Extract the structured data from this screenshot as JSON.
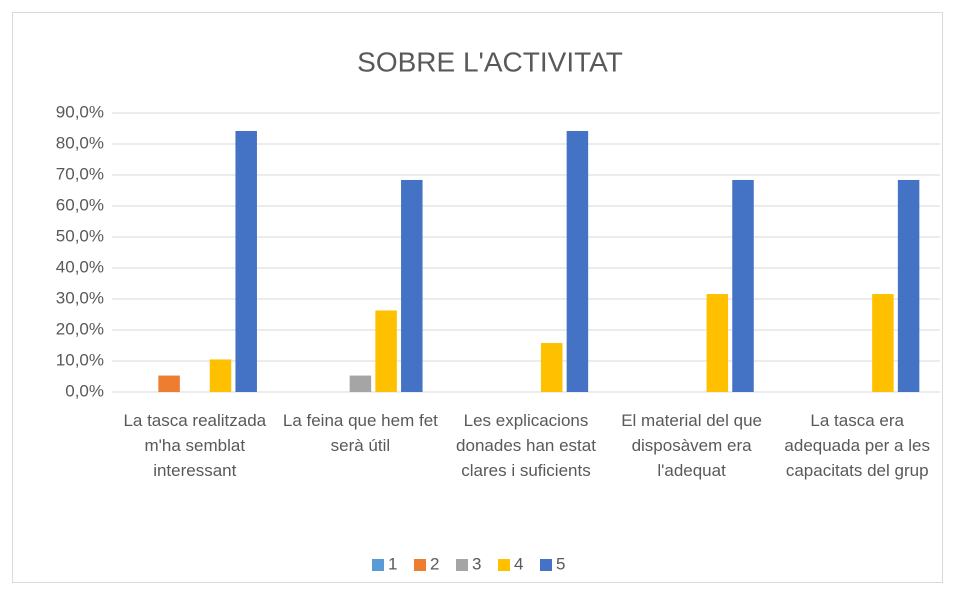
{
  "chart_data": {
    "type": "bar",
    "title": "SOBRE L'ACTIVITAT",
    "categories": [
      "La tasca realitzada m'ha semblat interessant",
      "La feina que hem fet serà útil",
      "Les explicacions donades han estat clares i suficients",
      "El material del que disposàvem era l'adequat",
      "La tasca era adequada per a les capacitats del grup"
    ],
    "series": [
      {
        "name": "1",
        "color": "#5b9bd5",
        "values": [
          0,
          0,
          0,
          0,
          0
        ]
      },
      {
        "name": "2",
        "color": "#ed7d31",
        "values": [
          5.3,
          0,
          0,
          0,
          0
        ]
      },
      {
        "name": "3",
        "color": "#a5a5a5",
        "values": [
          0,
          5.3,
          0,
          0,
          0
        ]
      },
      {
        "name": "4",
        "color": "#ffc000",
        "values": [
          10.5,
          26.3,
          15.8,
          31.6,
          31.6
        ]
      },
      {
        "name": "5",
        "color": "#4472c4",
        "values": [
          84.2,
          68.4,
          84.2,
          68.4,
          68.4
        ]
      }
    ],
    "ylim": [
      0,
      90
    ],
    "yticks": [
      {
        "value": 0,
        "label": "0,0%"
      },
      {
        "value": 10,
        "label": "10,0%"
      },
      {
        "value": 20,
        "label": "20,0%"
      },
      {
        "value": 30,
        "label": "30,0%"
      },
      {
        "value": 40,
        "label": "40,0%"
      },
      {
        "value": 50,
        "label": "50,0%"
      },
      {
        "value": 60,
        "label": "60,0%"
      },
      {
        "value": 70,
        "label": "70,0%"
      },
      {
        "value": 80,
        "label": "80,0%"
      },
      {
        "value": 90,
        "label": "90,0%"
      }
    ],
    "grid": true,
    "legend": "bottom"
  }
}
